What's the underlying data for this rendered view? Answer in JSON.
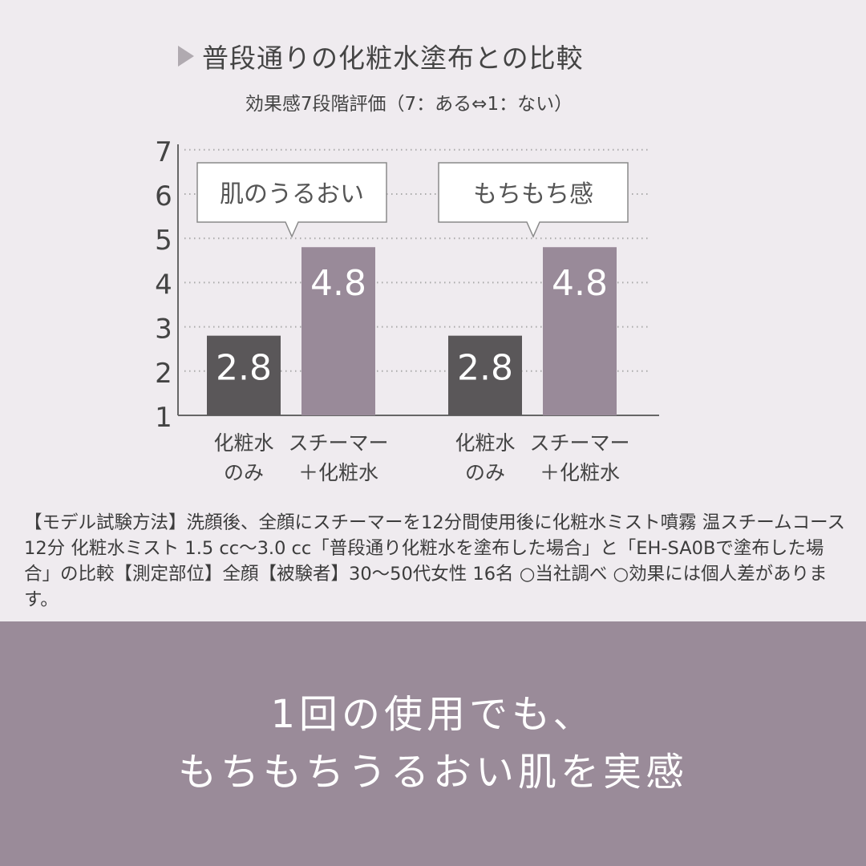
{
  "title": "普段通りの化粧水塗布との比較",
  "subtitle": "効果感7段階評価（7：ある⇔1：ない）",
  "chart_data": {
    "type": "bar",
    "ylim": [
      1,
      7
    ],
    "yticks": [
      "1",
      "2",
      "3",
      "4",
      "5",
      "6",
      "7"
    ],
    "grid": true,
    "groups": [
      {
        "label": "肌のうるおい",
        "bars": [
          {
            "label_line1": "化粧水",
            "label_line2": "のみ",
            "value": 2.8,
            "value_label": "2.8",
            "color": "#5a5759"
          },
          {
            "label_line1": "スチーマー",
            "label_line2": "＋化粧水",
            "value": 4.8,
            "value_label": "4.8",
            "color": "#998a99"
          }
        ]
      },
      {
        "label": "もちもち感",
        "bars": [
          {
            "label_line1": "化粧水",
            "label_line2": "のみ",
            "value": 2.8,
            "value_label": "2.8",
            "color": "#5a5759"
          },
          {
            "label_line1": "スチーマー",
            "label_line2": "＋化粧水",
            "value": 4.8,
            "value_label": "4.8",
            "color": "#998a99"
          }
        ]
      }
    ]
  },
  "note": "【モデル試験方法】洗顔後、全顔にスチーマーを12分間使用後に化粧水ミスト噴霧 温スチームコース 12分 化粧水ミスト 1.5 cc〜3.0 cc「普段通り化粧水を塗布した場合」と「EH-SA0Bで塗布した場合」の比較【測定部位】全顔【被験者】30〜50代女性 16名 ○当社調べ ○効果には個人差があります。",
  "headline_line1": "1回の使用でも、",
  "headline_line2": "もちもちうるおい肌を実感"
}
